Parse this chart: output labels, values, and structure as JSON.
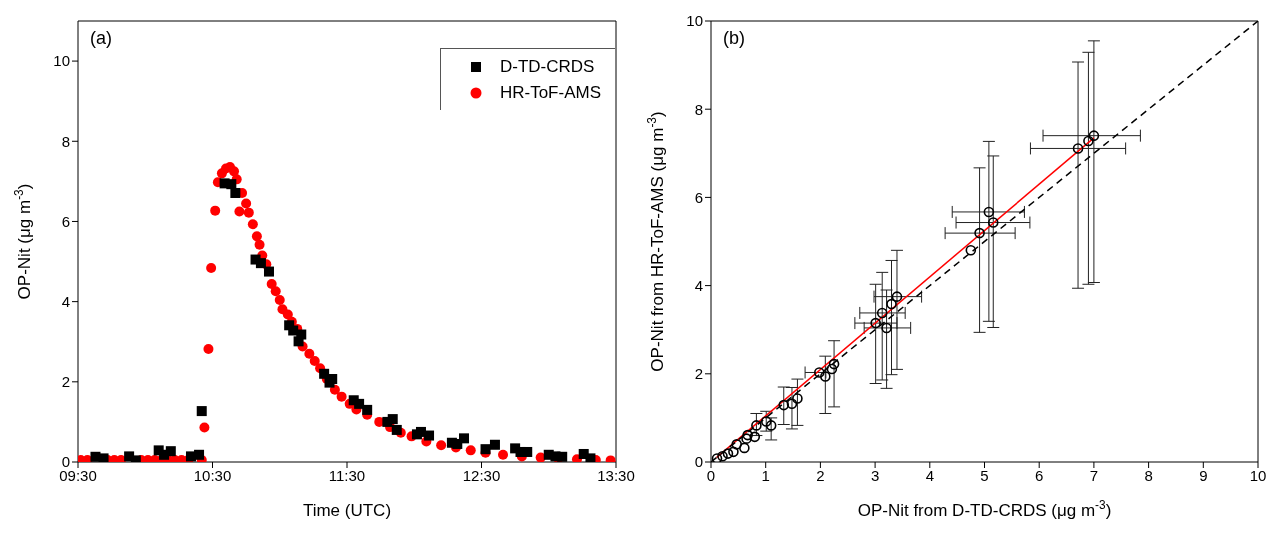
{
  "chart_data": [
    {
      "type": "scatter",
      "title": "(a)",
      "xlabel": "Time (UTC)",
      "ylabel": "OP-Nit (μg m$^{-3}$)",
      "xlim": [
        9.5,
        13.5
      ],
      "xticks": [
        {
          "value": 9.5,
          "label": "09:30"
        },
        {
          "value": 10.5,
          "label": "10:30"
        },
        {
          "value": 11.5,
          "label": "11:30"
        },
        {
          "value": 12.5,
          "label": "12:30"
        },
        {
          "value": 13.5,
          "label": "13:30"
        }
      ],
      "ylim": [
        0,
        11
      ],
      "yticks": [
        0,
        2,
        4,
        6,
        8,
        10
      ],
      "legend": "top right",
      "grid": false,
      "series": [
        {
          "name": "D-TD-CRDS",
          "color": "#000000",
          "marker": "square",
          "x": [
            9.63,
            9.69,
            9.88,
            9.93,
            10.1,
            10.14,
            10.19,
            10.34,
            10.4,
            10.42,
            10.59,
            10.64,
            10.67,
            10.82,
            10.86,
            10.92,
            11.07,
            11.1,
            11.14,
            11.16,
            11.33,
            11.37,
            11.39,
            11.55,
            11.59,
            11.65,
            11.8,
            11.84,
            11.87,
            12.02,
            12.05,
            12.11,
            12.28,
            12.32,
            12.37,
            12.53,
            12.6,
            12.75,
            12.79,
            12.84,
            13.0,
            13.05,
            13.1,
            13.26,
            13.31
          ],
          "values": [
            0.13,
            0.09,
            0.14,
            0.04,
            0.29,
            0.18,
            0.27,
            0.14,
            0.18,
            1.27,
            6.95,
            6.93,
            6.71,
            5.05,
            4.96,
            4.75,
            3.41,
            3.28,
            3.01,
            3.18,
            2.2,
            1.98,
            2.07,
            1.54,
            1.45,
            1.3,
            1.0,
            1.07,
            0.8,
            0.69,
            0.75,
            0.66,
            0.48,
            0.45,
            0.59,
            0.32,
            0.43,
            0.34,
            0.25,
            0.25,
            0.18,
            0.14,
            0.13,
            0.2,
            0.09
          ]
        },
        {
          "name": "HR-ToF-AMS",
          "color": "#ff0000",
          "marker": "circle",
          "x": [
            9.52,
            9.57,
            9.72,
            9.77,
            9.82,
            9.97,
            10.02,
            10.07,
            10.12,
            10.17,
            10.22,
            10.27,
            10.32,
            10.42,
            10.44,
            10.47,
            10.49,
            10.52,
            10.54,
            10.57,
            10.6,
            10.63,
            10.66,
            10.68,
            10.7,
            10.72,
            10.75,
            10.77,
            10.8,
            10.83,
            10.85,
            10.87,
            10.9,
            10.94,
            10.97,
            11.0,
            11.02,
            11.06,
            11.09,
            11.13,
            11.17,
            11.22,
            11.26,
            11.3,
            11.35,
            11.41,
            11.46,
            11.52,
            11.57,
            11.65,
            11.74,
            11.82,
            11.9,
            11.98,
            12.09,
            12.2,
            12.31,
            12.42,
            12.53,
            12.66,
            12.8,
            12.94,
            13.07,
            13.21,
            13.35,
            13.46
          ],
          "values": [
            0.05,
            0.05,
            0.05,
            0.05,
            0.05,
            0.05,
            0.05,
            0.05,
            0.05,
            0.05,
            0.05,
            0.05,
            0.05,
            0.05,
            0.86,
            2.82,
            4.84,
            6.27,
            6.98,
            7.2,
            7.32,
            7.36,
            7.25,
            7.05,
            6.25,
            6.71,
            6.45,
            6.22,
            5.93,
            5.63,
            5.42,
            5.15,
            4.93,
            4.44,
            4.26,
            4.04,
            3.81,
            3.68,
            3.5,
            3.32,
            2.88,
            2.7,
            2.52,
            2.34,
            2.07,
            1.8,
            1.63,
            1.45,
            1.31,
            1.18,
            1.0,
            0.87,
            0.73,
            0.64,
            0.51,
            0.42,
            0.36,
            0.29,
            0.23,
            0.18,
            0.14,
            0.11,
            0.09,
            0.07,
            0.05,
            0.04
          ]
        }
      ]
    },
    {
      "type": "scatter",
      "title": "(b)",
      "xlabel": "OP-Nit from D-TD-CRDS (μg m$^{-3}$)",
      "ylabel": "OP-Nit from HR-ToF-AMS (μg m$^{-3}$)",
      "xlim": [
        0,
        10
      ],
      "xticks": [
        0,
        1,
        2,
        3,
        4,
        5,
        6,
        7,
        8,
        9,
        10
      ],
      "ylim": [
        0,
        10
      ],
      "yticks": [
        0,
        2,
        4,
        6,
        8,
        10
      ],
      "legend": false,
      "grid": false,
      "series": [
        {
          "type": "line",
          "color": "#000000",
          "line_style": "dashed",
          "marker": "none",
          "x": [
            0,
            10
          ],
          "values": [
            0,
            10
          ]
        },
        {
          "color": "#000000",
          "marker": "circle",
          "x": [
            0.11,
            0.21,
            0.31,
            0.41,
            0.47,
            0.61,
            0.65,
            0.67,
            0.8,
            0.83,
            1.01,
            1.1,
            1.33,
            1.48,
            1.58,
            1.98,
            2.09,
            2.21,
            2.25,
            3.01,
            3.13,
            3.21,
            3.3,
            3.4,
            4.75,
            4.91,
            5.08,
            5.16,
            6.71,
            6.9,
            7.0
          ],
          "values": [
            0.08,
            0.13,
            0.19,
            0.23,
            0.4,
            0.32,
            0.53,
            0.61,
            0.57,
            0.83,
            0.92,
            0.83,
            1.29,
            1.32,
            1.44,
            2.03,
            1.94,
            2.11,
            2.22,
            3.15,
            3.38,
            3.04,
            3.58,
            3.75,
            4.8,
            5.19,
            5.67,
            5.43,
            7.11,
            7.28,
            7.4
          ],
          "errors": [
            null,
            null,
            null,
            null,
            null,
            null,
            null,
            null,
            null,
            [
              0.6,
              1.1
            ],
            [
              0.7,
              1.15
            ],
            [
              0.5,
              1.0
            ],
            [
              0.85,
              1.7
            ],
            [
              0.75,
              1.69
            ],
            [
              0.83,
              1.88
            ],
            null,
            [
              1.1,
              2.4
            ],
            null,
            [
              1.25,
              2.75
            ],
            [
              1.78,
              4.03
            ],
            [
              1.86,
              4.3
            ],
            [
              1.67,
              3.9
            ],
            [
              1.98,
              4.57
            ],
            [
              2.1,
              4.8
            ],
            null,
            [
              2.94,
              6.67
            ],
            [
              3.19,
              7.27
            ],
            [
              3.05,
              6.94
            ],
            [
              3.94,
              9.07
            ],
            [
              4.03,
              9.29
            ],
            [
              4.07,
              9.55
            ]
          ],
          "xerrors": [
            null,
            null,
            null,
            null,
            null,
            null,
            null,
            null,
            null,
            null,
            null,
            null,
            null,
            null,
            null,
            [
              1.72,
              2.1
            ],
            null,
            null,
            null,
            [
              2.63,
              3.4
            ],
            [
              2.72,
              3.55
            ],
            [
              2.8,
              3.65
            ],
            null,
            [
              2.98,
              3.85
            ],
            null,
            [
              4.28,
              5.56
            ],
            [
              4.41,
              5.73
            ],
            [
              4.48,
              5.83
            ],
            [
              5.84,
              7.58
            ],
            null,
            [
              6.07,
              7.85
            ]
          ]
        },
        {
          "type": "line",
          "color": "#ff0000",
          "line_style": "solid",
          "marker": "none",
          "x": [
            0.1,
            7.0
          ],
          "values": [
            0.1,
            7.35
          ]
        }
      ]
    }
  ]
}
